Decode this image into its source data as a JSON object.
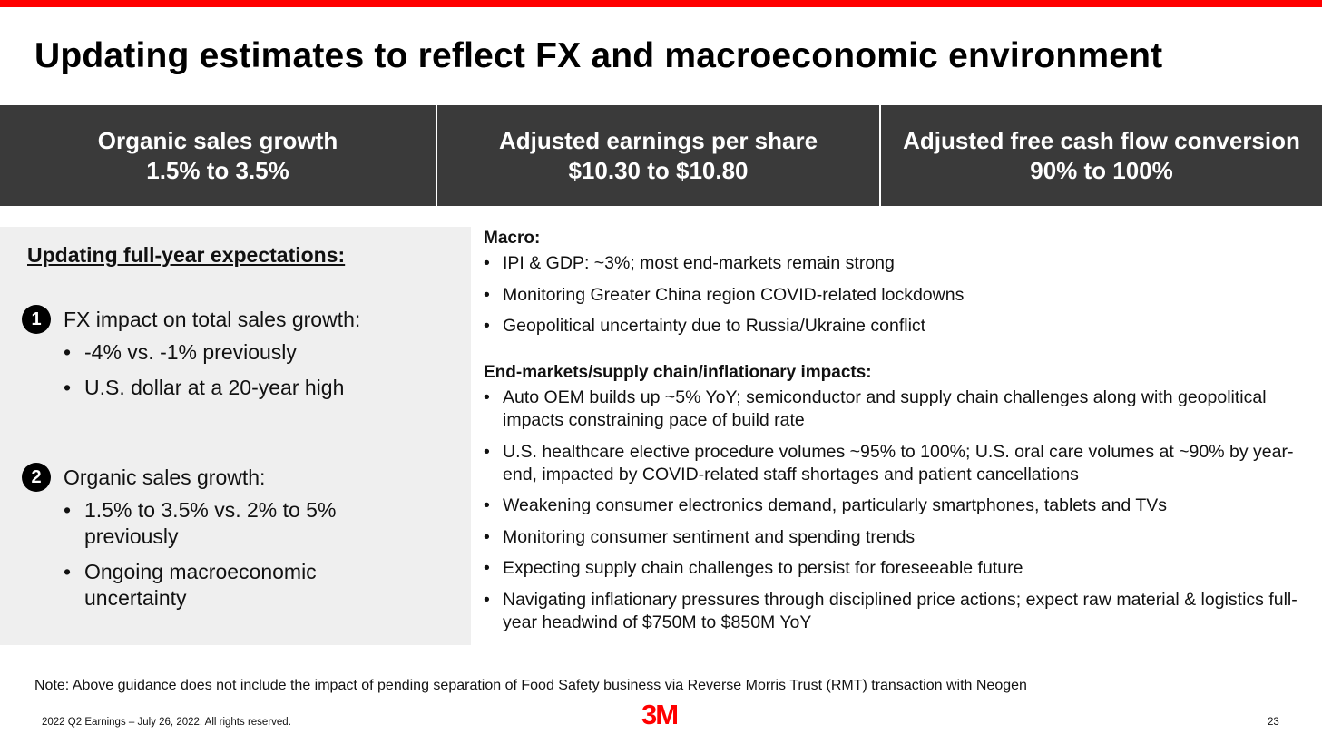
{
  "colors": {
    "accent": "#ff0000",
    "kpi_bg": "#3a3a3a",
    "panel_bg": "#efefef"
  },
  "title": "Updating estimates to reflect FX and macroeconomic environment",
  "kpis": [
    {
      "label": "Organic sales growth",
      "value": "1.5% to 3.5%"
    },
    {
      "label": "Adjusted earnings per share",
      "value": "$10.30 to $10.80"
    },
    {
      "label": "Adjusted free cash flow conversion",
      "value": "90% to 100%"
    }
  ],
  "left": {
    "heading": "Updating full-year expectations:",
    "sections": [
      {
        "number": "1",
        "title": "FX impact on total sales growth:",
        "items": [
          "-4% vs. -1% previously",
          "U.S. dollar at a 20-year high"
        ]
      },
      {
        "number": "2",
        "title": "Organic sales growth:",
        "items": [
          "1.5% to 3.5% vs. 2% to 5% previously",
          "Ongoing macroeconomic uncertainty"
        ]
      }
    ]
  },
  "right": {
    "macro_heading": "Macro:",
    "macro_items": [
      "IPI & GDP: ~3%; most end-markets remain strong",
      "Monitoring Greater China region COVID-related lockdowns",
      "Geopolitical uncertainty due to Russia/Ukraine conflict"
    ],
    "end_heading": "End-markets/supply chain/inflationary impacts:",
    "end_items": [
      "Auto OEM builds up ~5% YoY; semiconductor and supply chain challenges along with geopolitical impacts constraining pace of build rate",
      "U.S. healthcare elective procedure volumes ~95% to 100%; U.S. oral care volumes at ~90% by year-end, impacted by COVID-related staff shortages and patient cancellations",
      "Weakening consumer electronics demand, particularly smartphones, tablets and TVs",
      "Monitoring consumer sentiment and spending trends",
      "Expecting supply chain challenges to persist for foreseeable future",
      "Navigating inflationary pressures through disciplined price actions; expect raw material & logistics full-year headwind of $750M to $850M YoY"
    ]
  },
  "note": "Note: Above guidance does not include the impact of pending separation of Food Safety business via Reverse Morris Trust (RMT) transaction with Neogen",
  "footer": {
    "left": "2022 Q2 Earnings – July 26, 2022. All rights reserved.",
    "logo": "3M",
    "page": "23"
  }
}
